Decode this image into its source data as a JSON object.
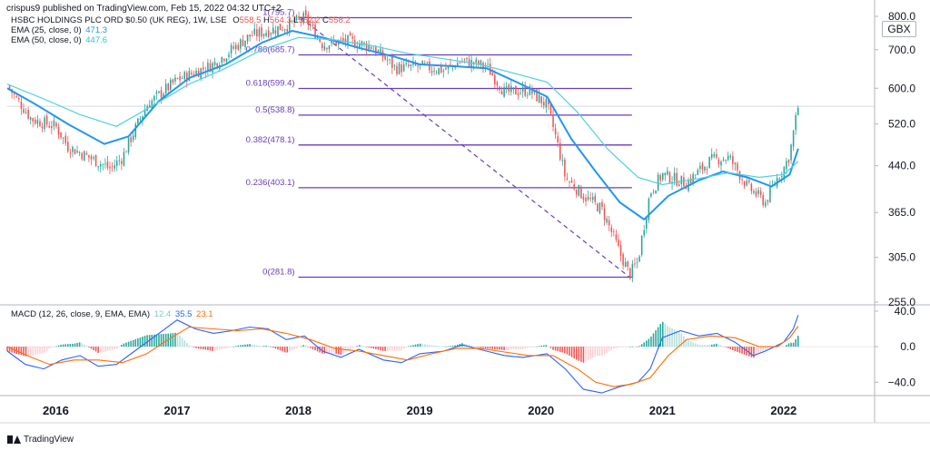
{
  "header": {
    "published_by": "crispus9 published on TradingView.com, Feb 15, 2022 04:32 UTC+2"
  },
  "legend": {
    "symbol": "HSBC HOLDINGS PLC ORD $0.50 (UK REG), 1W, LSE",
    "open_label": "O",
    "open": "558.5",
    "high_label": "H",
    "high": "564.3",
    "low_label": "L",
    "low": "552.2",
    "close_label": "C",
    "close": "558.2",
    "ema25_label": "EMA (25, close, 0)",
    "ema25_value": "471.3",
    "ema50_label": "EMA (50, close, 0)",
    "ema50_value": "447.6",
    "macd_label": "MACD (12, 26, close, 9, EMA, EMA)",
    "macd_hist": "12.4",
    "macd_line": "35.5",
    "macd_signal": "23.1"
  },
  "currency": "GBX",
  "footer": {
    "brand": "TradingView"
  },
  "colors": {
    "up": "#26a69a",
    "down": "#ef5350",
    "ema25": "#2196f3",
    "ema50": "#4dd0e1",
    "fib": "#6a3dba",
    "macd_line": "#2962ff",
    "signal_line": "#ff6d00",
    "hist_up": "#26a69a",
    "hist_down": "#ef5350",
    "grid": "#e0e3eb"
  },
  "chart_data": [
    {
      "type": "candlestick",
      "title": "HSBC HOLDINGS PLC ORD $0.50 (UK REG), 1W, LSE",
      "y_axis_ticks": [
        "800.0",
        "700.0",
        "600.0",
        "520.0",
        "440.0",
        "365.0",
        "305.0",
        "255.0"
      ],
      "y_axis_tick_values": [
        800,
        700,
        600,
        520,
        440,
        365,
        305,
        255
      ],
      "ylim": [
        255,
        800
      ],
      "x_axis_ticks": [
        "2016",
        "2017",
        "2018",
        "2019",
        "2020",
        "2021",
        "2022"
      ],
      "x_axis_tick_values": [
        2016.0,
        2017.0,
        2018.0,
        2019.0,
        2020.0,
        2021.0,
        2022.0
      ],
      "xlim": [
        2015.6,
        2022.75
      ],
      "last_price": 558.2,
      "price_key_points": [
        [
          2015.6,
          605
        ],
        [
          2015.8,
          530
        ],
        [
          2016.0,
          515
        ],
        [
          2016.1,
          475
        ],
        [
          2016.45,
          435
        ],
        [
          2016.55,
          455
        ],
        [
          2016.75,
          560
        ],
        [
          2017.0,
          620
        ],
        [
          2017.3,
          660
        ],
        [
          2017.6,
          740
        ],
        [
          2017.9,
          770
        ],
        [
          2018.05,
          795
        ],
        [
          2018.2,
          715
        ],
        [
          2018.4,
          725
        ],
        [
          2018.6,
          710
        ],
        [
          2018.8,
          650
        ],
        [
          2019.0,
          655
        ],
        [
          2019.2,
          645
        ],
        [
          2019.35,
          670
        ],
        [
          2019.55,
          655
        ],
        [
          2019.7,
          590
        ],
        [
          2019.9,
          595
        ],
        [
          2020.05,
          560
        ],
        [
          2020.2,
          420
        ],
        [
          2020.35,
          390
        ],
        [
          2020.5,
          370
        ],
        [
          2020.65,
          310
        ],
        [
          2020.73,
          285
        ],
        [
          2020.8,
          300
        ],
        [
          2020.9,
          395
        ],
        [
          2021.0,
          425
        ],
        [
          2021.2,
          410
        ],
        [
          2021.4,
          450
        ],
        [
          2021.55,
          455
        ],
        [
          2021.7,
          405
        ],
        [
          2021.85,
          380
        ],
        [
          2021.95,
          420
        ],
        [
          2022.0,
          435
        ],
        [
          2022.05,
          460
        ],
        [
          2022.12,
          558
        ]
      ],
      "series": [
        {
          "name": "EMA (25, close, 0)",
          "points": [
            [
              2015.6,
              600
            ],
            [
              2015.85,
              560
            ],
            [
              2016.1,
              520
            ],
            [
              2016.4,
              480
            ],
            [
              2016.6,
              495
            ],
            [
              2016.85,
              570
            ],
            [
              2017.1,
              625
            ],
            [
              2017.4,
              660
            ],
            [
              2017.7,
              720
            ],
            [
              2017.95,
              755
            ],
            [
              2018.2,
              735
            ],
            [
              2018.5,
              705
            ],
            [
              2018.8,
              680
            ],
            [
              2019.0,
              660
            ],
            [
              2019.3,
              655
            ],
            [
              2019.55,
              650
            ],
            [
              2019.8,
              615
            ],
            [
              2020.05,
              580
            ],
            [
              2020.25,
              490
            ],
            [
              2020.45,
              430
            ],
            [
              2020.65,
              380
            ],
            [
              2020.85,
              355
            ],
            [
              2021.05,
              390
            ],
            [
              2021.3,
              415
            ],
            [
              2021.5,
              430
            ],
            [
              2021.7,
              420
            ],
            [
              2021.9,
              405
            ],
            [
              2022.05,
              425
            ],
            [
              2022.12,
              471.3
            ]
          ]
        },
        {
          "name": "EMA (50, close, 0)",
          "points": [
            [
              2015.6,
              610
            ],
            [
              2015.9,
              575
            ],
            [
              2016.2,
              540
            ],
            [
              2016.5,
              515
            ],
            [
              2016.8,
              560
            ],
            [
              2017.1,
              610
            ],
            [
              2017.4,
              650
            ],
            [
              2017.7,
              700
            ],
            [
              2018.0,
              735
            ],
            [
              2018.3,
              728
            ],
            [
              2018.6,
              712
            ],
            [
              2018.9,
              690
            ],
            [
              2019.2,
              675
            ],
            [
              2019.5,
              660
            ],
            [
              2019.8,
              635
            ],
            [
              2020.05,
              615
            ],
            [
              2020.3,
              545
            ],
            [
              2020.55,
              470
            ],
            [
              2020.8,
              420
            ],
            [
              2021.0,
              408
            ],
            [
              2021.3,
              418
            ],
            [
              2021.55,
              428
            ],
            [
              2021.8,
              420
            ],
            [
              2022.0,
              425
            ],
            [
              2022.12,
              447.6
            ]
          ]
        }
      ],
      "fibonacci": {
        "levels": [
          {
            "ratio_label": "1",
            "price": 795.7
          },
          {
            "ratio_label": "0.786",
            "price": 685.7
          },
          {
            "ratio_label": "0.618",
            "price": 599.4
          },
          {
            "ratio_label": "0.5",
            "price": 538.8
          },
          {
            "ratio_label": "0.382",
            "price": 478.1
          },
          {
            "ratio_label": "0.236",
            "price": 403.1
          },
          {
            "ratio_label": "0",
            "price": 281.8
          }
        ],
        "x_start": 2018.0,
        "x_end": 2020.75,
        "trend_from": [
          2018.02,
          795.7
        ],
        "trend_to": [
          2020.73,
          281.8
        ]
      }
    },
    {
      "type": "macd",
      "title": "MACD (12, 26, close, 9, EMA, EMA)",
      "y_axis_ticks": [
        "40.0",
        "0.0",
        "−40.0"
      ],
      "y_axis_tick_values": [
        40,
        0,
        -40
      ],
      "ylim": [
        -55,
        45
      ],
      "series": [
        {
          "name": "MACD",
          "points": [
            [
              2015.6,
              -5
            ],
            [
              2015.75,
              -20
            ],
            [
              2015.9,
              -25
            ],
            [
              2016.05,
              -15
            ],
            [
              2016.2,
              -10
            ],
            [
              2016.35,
              -22
            ],
            [
              2016.5,
              -20
            ],
            [
              2016.65,
              -5
            ],
            [
              2016.85,
              15
            ],
            [
              2017.0,
              30
            ],
            [
              2017.15,
              20
            ],
            [
              2017.3,
              15
            ],
            [
              2017.45,
              18
            ],
            [
              2017.6,
              22
            ],
            [
              2017.75,
              20
            ],
            [
              2017.9,
              8
            ],
            [
              2018.05,
              12
            ],
            [
              2018.2,
              -5
            ],
            [
              2018.35,
              -12
            ],
            [
              2018.5,
              -3
            ],
            [
              2018.7,
              -15
            ],
            [
              2018.85,
              -18
            ],
            [
              2019.0,
              -8
            ],
            [
              2019.2,
              -5
            ],
            [
              2019.35,
              2
            ],
            [
              2019.55,
              -5
            ],
            [
              2019.7,
              -10
            ],
            [
              2019.85,
              -12
            ],
            [
              2020.05,
              -8
            ],
            [
              2020.2,
              -25
            ],
            [
              2020.35,
              -48
            ],
            [
              2020.5,
              -52
            ],
            [
              2020.65,
              -45
            ],
            [
              2020.8,
              -40
            ],
            [
              2020.9,
              -25
            ],
            [
              2021.0,
              10
            ],
            [
              2021.15,
              18
            ],
            [
              2021.3,
              12
            ],
            [
              2021.45,
              15
            ],
            [
              2021.6,
              5
            ],
            [
              2021.75,
              -10
            ],
            [
              2021.85,
              -5
            ],
            [
              2022.0,
              5
            ],
            [
              2022.08,
              20
            ],
            [
              2022.12,
              35.5
            ]
          ]
        },
        {
          "name": "Signal",
          "points": [
            [
              2015.6,
              0
            ],
            [
              2015.8,
              -12
            ],
            [
              2015.95,
              -20
            ],
            [
              2016.15,
              -15
            ],
            [
              2016.35,
              -15
            ],
            [
              2016.55,
              -18
            ],
            [
              2016.75,
              -8
            ],
            [
              2016.95,
              10
            ],
            [
              2017.1,
              22
            ],
            [
              2017.3,
              20
            ],
            [
              2017.5,
              18
            ],
            [
              2017.7,
              20
            ],
            [
              2017.9,
              15
            ],
            [
              2018.1,
              8
            ],
            [
              2018.3,
              -2
            ],
            [
              2018.5,
              -5
            ],
            [
              2018.7,
              -10
            ],
            [
              2018.9,
              -15
            ],
            [
              2019.1,
              -8
            ],
            [
              2019.3,
              -2
            ],
            [
              2019.5,
              -2
            ],
            [
              2019.7,
              -6
            ],
            [
              2019.9,
              -10
            ],
            [
              2020.1,
              -10
            ],
            [
              2020.3,
              -25
            ],
            [
              2020.45,
              -40
            ],
            [
              2020.6,
              -45
            ],
            [
              2020.75,
              -42
            ],
            [
              2020.9,
              -35
            ],
            [
              2021.05,
              -10
            ],
            [
              2021.2,
              8
            ],
            [
              2021.4,
              12
            ],
            [
              2021.6,
              10
            ],
            [
              2021.8,
              0
            ],
            [
              2021.95,
              0
            ],
            [
              2022.05,
              10
            ],
            [
              2022.12,
              23.1
            ]
          ]
        }
      ]
    }
  ]
}
